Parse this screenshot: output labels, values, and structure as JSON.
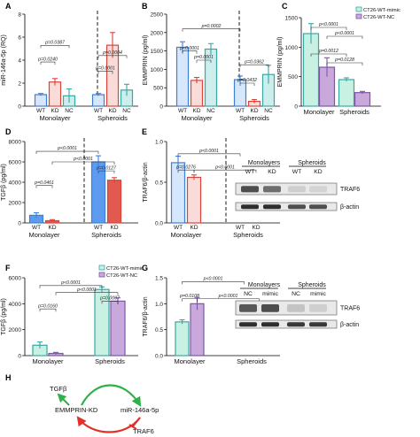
{
  "colors": {
    "blue": "#3f7fd4",
    "blue_fill": "#d6e6fb",
    "blue_solid": "#5c9bf0",
    "red": "#d9453a",
    "red_fill": "#f9dcd9",
    "red_solid": "#e25a4f",
    "teal": "#3aa7a2",
    "teal_fill": "#cdeeec",
    "mint": "#62c6b1",
    "mint_fill": "#c8f0e3",
    "purple": "#7b57a6",
    "purple_fill": "#c9a9dc",
    "green": "#2fb14a",
    "inhib_red": "#e0322a"
  },
  "chart_data": [
    {
      "panel": "A",
      "type": "bar",
      "ylabel": "miR-146a-5p (RQ)",
      "ylim": [
        0,
        8
      ],
      "yticks": [
        "0",
        "2",
        "4",
        "6",
        "8"
      ],
      "groups": [
        {
          "name": "Monolayer",
          "categories": [
            "WT",
            "KD",
            "NC"
          ],
          "values": [
            1.0,
            2.1,
            0.9
          ],
          "errors": [
            0.1,
            0.3,
            0.6
          ]
        },
        {
          "name": "Spheroids",
          "categories": [
            "WT",
            "KD",
            "NC"
          ],
          "values": [
            1.0,
            5.3,
            1.4
          ],
          "errors": [
            0.1,
            1.1,
            0.5
          ]
        }
      ],
      "annotations": [
        "p=0.0387",
        "p=0.0240",
        "p=0.0001",
        "p=0.0004"
      ]
    },
    {
      "panel": "B",
      "type": "bar",
      "ylabel": "EMMPRIN (pg/ml)",
      "ylim": [
        0,
        2500
      ],
      "yticks": [
        "0",
        "500",
        "1000",
        "1500",
        "2000",
        "2500"
      ],
      "groups": [
        {
          "name": "Monolayer",
          "categories": [
            "WT",
            "KD",
            "NC"
          ],
          "values": [
            1600,
            700,
            1550
          ],
          "errors": [
            150,
            80,
            150
          ]
        },
        {
          "name": "Spheroids",
          "categories": [
            "WT",
            "KD",
            "NC"
          ],
          "values": [
            720,
            130,
            860
          ],
          "errors": [
            100,
            50,
            250
          ]
        }
      ],
      "annotations": [
        "p=0.0002",
        "p<0.0001",
        "p=0.0001",
        "p=0.0362",
        "p=0.0432"
      ]
    },
    {
      "panel": "C",
      "type": "bar",
      "ylabel": "EMMPRIN (pg/ml)",
      "ylim": [
        0,
        1500
      ],
      "yticks": [
        "0",
        "500",
        "1000",
        "1500"
      ],
      "legend": [
        "CT26-WT-mimic",
        "CT26-WT-NC"
      ],
      "groups": [
        {
          "name": "Monolayer",
          "categories": [
            "mimic",
            "NC"
          ],
          "values": [
            1230,
            660
          ],
          "errors": [
            170,
            160
          ]
        },
        {
          "name": "Spheroids",
          "categories": [
            "mimic",
            "NC"
          ],
          "values": [
            450,
            230
          ],
          "errors": [
            30,
            20
          ]
        }
      ],
      "annotations": [
        "p<0.0001",
        "p<0.0001",
        "p=0.0012",
        "p=0.0128"
      ]
    },
    {
      "panel": "D",
      "type": "bar",
      "ylabel": "TGFβ (pg/ml)",
      "ylim": [
        0,
        8000
      ],
      "yticks": [
        "0",
        "2000",
        "4000",
        "6000",
        "8000"
      ],
      "groups": [
        {
          "name": "Monolayer",
          "categories": [
            "WT",
            "KD"
          ],
          "values": [
            750,
            220
          ],
          "errors": [
            250,
            100
          ]
        },
        {
          "name": "Spheroids",
          "categories": [
            "WT",
            "KD"
          ],
          "values": [
            6000,
            4200
          ],
          "errors": [
            600,
            250
          ]
        }
      ],
      "annotations": [
        "p<0.0001",
        "p<0.0001",
        "p=0.0127",
        "p=0.0461"
      ]
    },
    {
      "panel": "E",
      "type": "bar",
      "ylabel": "TRAF6/β-actin",
      "ylim": [
        0,
        1.0
      ],
      "yticks": [
        "0.0",
        "0.5",
        "1.0"
      ],
      "groups": [
        {
          "name": "Monolayer",
          "categories": [
            "WT",
            "KD"
          ],
          "values": [
            0.74,
            0.56
          ],
          "errors": [
            0.08,
            0.03
          ]
        },
        {
          "name": "Spheroids",
          "categories": [
            "WT",
            "KD"
          ],
          "values": [
            0,
            0
          ],
          "errors": [
            0,
            0
          ]
        }
      ],
      "annotations": [
        "p<0.0001",
        "p=0.0276",
        "p<0.0001"
      ]
    },
    {
      "panel": "F",
      "type": "bar",
      "ylabel": "TGFβ (pg/ml)",
      "ylim": [
        0,
        6000
      ],
      "yticks": [
        "0",
        "2000",
        "4000",
        "6000"
      ],
      "legend": [
        "CT26-WT-mimic",
        "CT26-WT-NC"
      ],
      "groups": [
        {
          "name": "Monolayer",
          "categories": [
            "mimic",
            "NC"
          ],
          "values": [
            800,
            170
          ],
          "errors": [
            250,
            80
          ]
        },
        {
          "name": "Spheroids",
          "categories": [
            "mimic",
            "NC"
          ],
          "values": [
            5100,
            4200
          ],
          "errors": [
            200,
            250
          ]
        }
      ],
      "annotations": [
        "p<0.0001",
        "p<0.0001",
        "p=0.0160",
        "p=0.0007"
      ]
    },
    {
      "panel": "G",
      "type": "bar",
      "ylabel": "TRAF6/β-actin",
      "ylim": [
        0,
        1.5
      ],
      "yticks": [
        "0.0",
        "0.5",
        "1.0",
        "1.5"
      ],
      "groups": [
        {
          "name": "Monolayer",
          "categories": [
            "mimic",
            "NC"
          ],
          "values": [
            0.65,
            1.0
          ],
          "errors": [
            0.04,
            0.12
          ]
        },
        {
          "name": "Spheroids",
          "categories": [
            "mimic",
            "NC"
          ],
          "values": [
            0,
            0
          ],
          "errors": [
            0,
            0
          ]
        }
      ],
      "annotations": [
        "p<0.0001",
        "p=0.0108",
        "p<0.0001"
      ]
    }
  ],
  "panel_labels": [
    "A",
    "B",
    "C",
    "D",
    "E",
    "F",
    "G",
    "H"
  ],
  "blots": [
    {
      "headers": [
        "Monolayers",
        "Spheroids"
      ],
      "lanes": [
        "WT",
        "KD",
        "WT",
        "KD"
      ],
      "bands": [
        "TRAF6",
        "β-actin"
      ]
    },
    {
      "headers": [
        "Monolayers",
        "Spheroids"
      ],
      "lanes": [
        "NC",
        "mimic",
        "NC",
        "mimic"
      ],
      "bands": [
        "TRAF6",
        "β-actin"
      ]
    }
  ],
  "diagram": {
    "nodes": [
      "TGFβ",
      "EMMPRIN-KD",
      "miR-146a-5p",
      "TRAF6"
    ]
  }
}
